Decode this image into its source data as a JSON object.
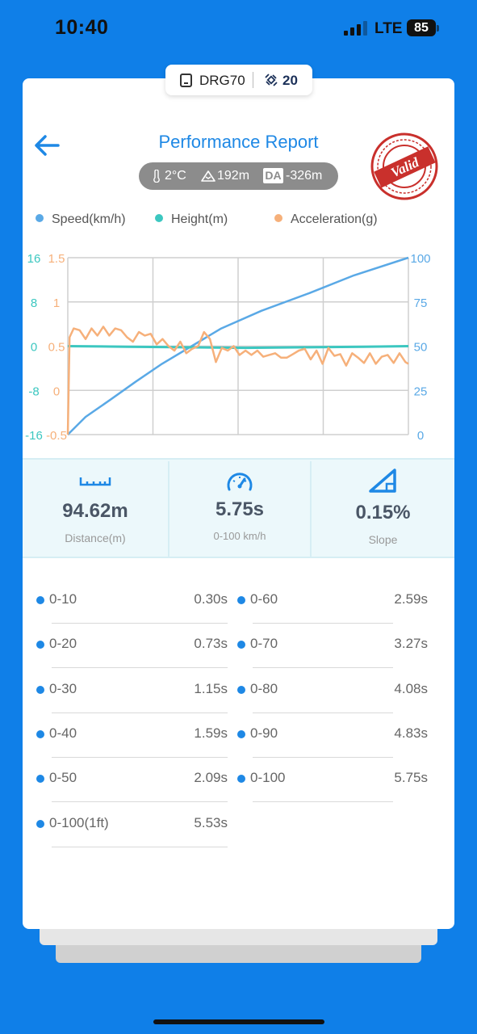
{
  "status_bar": {
    "time": "10:40",
    "network": "LTE",
    "battery": "85"
  },
  "device": {
    "name": "DRG70",
    "satellites": "20"
  },
  "header": {
    "title": "Performance Report",
    "stamp_text": "Valid"
  },
  "conditions": {
    "temperature": "2°C",
    "altitude": "192m",
    "da_label": "DA",
    "density_altitude": "-326m"
  },
  "legend": [
    {
      "label": "Speed(km/h)",
      "color": "#5aa9e6"
    },
    {
      "label": "Height(m)",
      "color": "#3cc7c0"
    },
    {
      "label": "Acceleration(g)",
      "color": "#f6b07a"
    }
  ],
  "chart_data": {
    "type": "line",
    "x_range": [
      0,
      5.75
    ],
    "axes": {
      "height_ticks": [
        "16",
        "8",
        "0",
        "-8",
        "-16"
      ],
      "accel_ticks": [
        "1.5",
        "1",
        "0.5",
        "0",
        "-0.5"
      ],
      "speed_ticks": [
        "100",
        "75",
        "50",
        "25",
        "0"
      ]
    },
    "ylim_speed": [
      0,
      100
    ],
    "ylim_height": [
      -16,
      16
    ],
    "ylim_accel": [
      -0.5,
      1.5
    ],
    "grid": true,
    "series": [
      {
        "name": "Speed(km/h)",
        "axis": "speed",
        "color": "#5aa9e6",
        "x": [
          0,
          0.3,
          0.73,
          1.15,
          1.59,
          2.09,
          2.59,
          3.27,
          4.08,
          4.83,
          5.75
        ],
        "y": [
          0,
          10,
          20,
          30,
          40,
          50,
          60,
          70,
          80,
          90,
          100
        ]
      },
      {
        "name": "Height(m)",
        "axis": "height",
        "color": "#3cc7c0",
        "x": [
          0,
          1,
          2,
          3,
          4,
          5,
          5.75
        ],
        "y": [
          0,
          -0.1,
          -0.2,
          -0.3,
          -0.2,
          -0.1,
          0
        ]
      },
      {
        "name": "Acceleration(g)",
        "axis": "accel",
        "color": "#f6b07a",
        "x": [
          0,
          0.03,
          0.1,
          0.2,
          0.3,
          0.4,
          0.5,
          0.6,
          0.7,
          0.8,
          0.9,
          1.0,
          1.1,
          1.2,
          1.3,
          1.4,
          1.5,
          1.6,
          1.7,
          1.8,
          1.9,
          2.0,
          2.1,
          2.2,
          2.3,
          2.4,
          2.5,
          2.6,
          2.7,
          2.8,
          2.9,
          3.0,
          3.1,
          3.2,
          3.3,
          3.4,
          3.5,
          3.6,
          3.7,
          3.8,
          3.9,
          4.0,
          4.1,
          4.2,
          4.3,
          4.4,
          4.5,
          4.6,
          4.7,
          4.8,
          4.9,
          5.0,
          5.1,
          5.2,
          5.3,
          5.4,
          5.5,
          5.6,
          5.7,
          5.75
        ],
        "y": [
          -0.5,
          0.6,
          0.7,
          0.68,
          0.58,
          0.7,
          0.62,
          0.72,
          0.62,
          0.7,
          0.68,
          0.6,
          0.55,
          0.66,
          0.62,
          0.64,
          0.52,
          0.58,
          0.5,
          0.45,
          0.55,
          0.42,
          0.47,
          0.5,
          0.66,
          0.58,
          0.32,
          0.48,
          0.45,
          0.5,
          0.4,
          0.45,
          0.4,
          0.45,
          0.38,
          0.4,
          0.42,
          0.37,
          0.37,
          0.41,
          0.45,
          0.47,
          0.35,
          0.45,
          0.3,
          0.48,
          0.39,
          0.41,
          0.28,
          0.42,
          0.37,
          0.31,
          0.42,
          0.3,
          0.38,
          0.4,
          0.31,
          0.42,
          0.32,
          0.3
        ]
      }
    ]
  },
  "stats": [
    {
      "value": "94.62m",
      "label": "Distance(m)",
      "icon": "ruler-icon"
    },
    {
      "value": "5.75s",
      "label": "0-100 km/h",
      "icon": "speedometer-icon"
    },
    {
      "value": "0.15%",
      "label": "Slope",
      "icon": "slope-icon"
    }
  ],
  "splits_left": [
    {
      "label": "0-10",
      "value": "0.30s"
    },
    {
      "label": "0-20",
      "value": "0.73s"
    },
    {
      "label": "0-30",
      "value": "1.15s"
    },
    {
      "label": "0-40",
      "value": "1.59s"
    },
    {
      "label": "0-50",
      "value": "2.09s"
    },
    {
      "label": "0-100(1ft)",
      "value": "5.53s"
    }
  ],
  "splits_right": [
    {
      "label": "0-60",
      "value": "2.59s"
    },
    {
      "label": "0-70",
      "value": "3.27s"
    },
    {
      "label": "0-80",
      "value": "4.08s"
    },
    {
      "label": "0-90",
      "value": "4.83s"
    },
    {
      "label": "0-100",
      "value": "5.75s"
    }
  ]
}
